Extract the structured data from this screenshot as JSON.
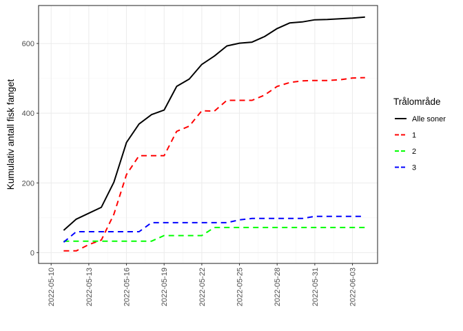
{
  "chart_data": {
    "type": "line",
    "title": "",
    "xlabel": "",
    "ylabel": "Kumulativ antall fisk fanget",
    "ylim": [
      -31,
      709
    ],
    "xlim": [
      "2022-05-09",
      "2022-06-05"
    ],
    "grid": true,
    "y_ticks": [
      0,
      200,
      400,
      600
    ],
    "x_ticks": [
      "2022-05-10",
      "2022-05-13",
      "2022-05-16",
      "2022-05-19",
      "2022-05-22",
      "2022-05-25",
      "2022-05-28",
      "2022-05-31",
      "2022-06-03"
    ],
    "x": [
      "2022-05-11",
      "2022-05-12",
      "2022-05-13",
      "2022-05-14",
      "2022-05-15",
      "2022-05-16",
      "2022-05-17",
      "2022-05-18",
      "2022-05-19",
      "2022-05-20",
      "2022-05-21",
      "2022-05-22",
      "2022-05-23",
      "2022-05-24",
      "2022-05-25",
      "2022-05-26",
      "2022-05-27",
      "2022-05-28",
      "2022-05-29",
      "2022-05-30",
      "2022-05-31",
      "2022-06-01",
      "2022-06-02",
      "2022-06-03",
      "2022-06-04"
    ],
    "legend": {
      "title": "Trålområde",
      "position": "right"
    },
    "series": [
      {
        "name": "Alle soner",
        "color": "#000000",
        "dash": "solid",
        "values": [
          64,
          96,
          113,
          130,
          202,
          316,
          369,
          396,
          409,
          477,
          498,
          540,
          564,
          593,
          601,
          604,
          620,
          643,
          659,
          662,
          668,
          669,
          671,
          673,
          676
        ]
      },
      {
        "name": "1",
        "color": "#ff0000",
        "dash": "dashed",
        "values": [
          5,
          5,
          23,
          36,
          110,
          224,
          278,
          278,
          278,
          348,
          363,
          407,
          406,
          437,
          437,
          437,
          452,
          477,
          488,
          493,
          494,
          494,
          496,
          501,
          502
        ]
      },
      {
        "name": "2",
        "color": "#00ff00",
        "dash": "dashed",
        "values": [
          33,
          33,
          33,
          33,
          33,
          33,
          33,
          33,
          49,
          49,
          49,
          49,
          72,
          72,
          72,
          72,
          72,
          72,
          72,
          72,
          72,
          72,
          72,
          72,
          72
        ]
      },
      {
        "name": "3",
        "color": "#0000ff",
        "dash": "dashed",
        "values": [
          30,
          60,
          60,
          60,
          60,
          60,
          60,
          86,
          86,
          86,
          86,
          86,
          86,
          86,
          94,
          98,
          98,
          98,
          98,
          98,
          104,
          104,
          104,
          104,
          104
        ]
      }
    ]
  }
}
